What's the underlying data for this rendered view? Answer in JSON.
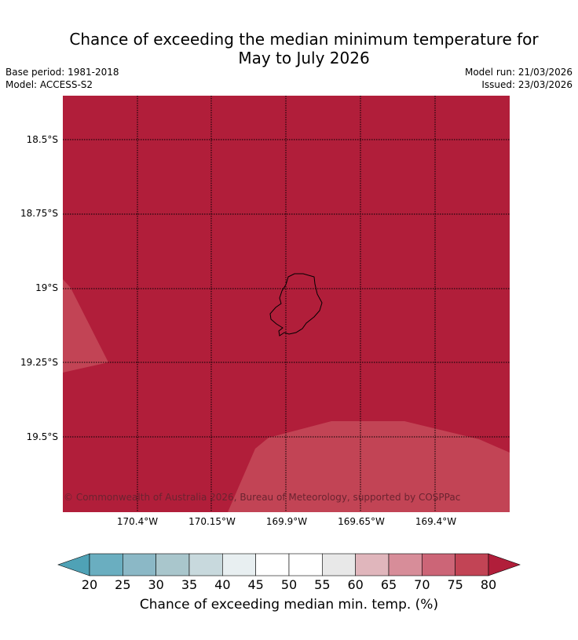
{
  "title_line1": "Chance of exceeding the median minimum temperature for",
  "title_line2": "May to July 2026",
  "base_period": "Base period: 1981-2018",
  "model": "Model: ACCESS-S2",
  "model_run": "Model run: 21/03/2026",
  "issued": "Issued: 23/03/2026",
  "copyright": "© Commonwealth of Australia 2026, Bureau of Meteorology, supported by COSPPac",
  "lat_labels": [
    "18.5°S",
    "18.75°S",
    "19°S",
    "19.25°S",
    "19.5°S"
  ],
  "lon_labels": [
    "170.4°W",
    "170.15°W",
    "169.9°W",
    "169.65°W",
    "169.4°W"
  ],
  "colorbar": {
    "label": "Chance of exceeding median min. temp. (%)",
    "ticks": [
      "20",
      "25",
      "30",
      "35",
      "40",
      "45",
      "50",
      "55",
      "60",
      "65",
      "70",
      "75",
      "80"
    ],
    "colors": [
      "#4fa2b6",
      "#6aaec0",
      "#8bb8c6",
      "#a9c6cc",
      "#c8d9dd",
      "#e8eff1",
      "#ffffff",
      "#ffffff",
      "#e8e8e8",
      "#e0b6bc",
      "#d78d99",
      "#cc6577",
      "#c24455",
      "#b11e3a"
    ]
  },
  "colors": {
    "high": "#b11e3a",
    "mid": "#c24455",
    "island_outline": "#000000"
  }
}
